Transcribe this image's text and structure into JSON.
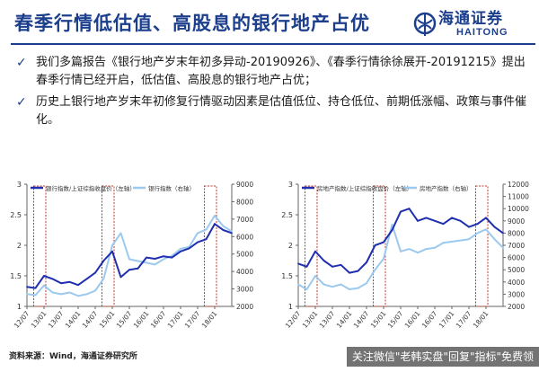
{
  "header": {
    "title": "春季行情低估值、高股息的银行地产占优",
    "logo_cn": "海通证券",
    "logo_en": "HAITONG"
  },
  "bullets": [
    "我们多篇报告《银行地产岁末年初多异动-20190926》、《春季行情徐徐展开-20191215》提出春季行情已经开启，低估值、高股息的银行地产占优；",
    "历史上银行地产岁末年初修复行情驱动因素是估值低位、持仓低位、前期低涨幅、政策与事件催化。"
  ],
  "colors": {
    "brand": "#1b3f8c",
    "series_dark": "#1f2fb0",
    "series_light": "#9cc9ee",
    "highlight_box": "#c0392b"
  },
  "chart_data": [
    {
      "type": "line",
      "x": [
        "12/07",
        "12/10",
        "13/01",
        "13/04",
        "13/07",
        "13/10",
        "14/01",
        "14/04",
        "14/07",
        "14/10",
        "15/01",
        "15/04",
        "15/07",
        "15/10",
        "16/01",
        "16/04",
        "16/07",
        "16/10",
        "17/01",
        "17/04",
        "17/07",
        "17/10",
        "18/01",
        "18/04",
        "18/07"
      ],
      "x_ticks": [
        "12/07",
        "13/01",
        "13/07",
        "14/01",
        "14/07",
        "15/01",
        "15/07",
        "16/01",
        "16/07",
        "17/01",
        "17/07",
        "18/01"
      ],
      "ylim_left": [
        1,
        3
      ],
      "ylim_right": [
        2000,
        9000
      ],
      "yticks_left": [
        "1",
        "1.5",
        "2",
        "2.5",
        "3"
      ],
      "yticks_right": [
        "2000",
        "3000",
        "4000",
        "5000",
        "6000",
        "7000",
        "8000",
        "9000"
      ],
      "series": [
        {
          "name": "银行指数/上证综指收盘价（左轴）",
          "axis": "left",
          "values": [
            1.32,
            1.3,
            1.5,
            1.45,
            1.38,
            1.4,
            1.35,
            1.45,
            1.55,
            1.75,
            1.9,
            1.48,
            1.6,
            1.62,
            1.8,
            1.78,
            1.82,
            1.8,
            1.9,
            1.95,
            2.05,
            2.1,
            2.35,
            2.25,
            2.2
          ]
        },
        {
          "name": "银行指数（右轴）",
          "axis": "right",
          "values": [
            2700,
            2650,
            3200,
            2800,
            2700,
            2800,
            2600,
            2700,
            2900,
            3600,
            5500,
            6200,
            4700,
            4600,
            4500,
            4400,
            4700,
            4900,
            5300,
            5400,
            6200,
            6400,
            7200,
            6600,
            6300
          ]
        }
      ],
      "highlight_boxes": [
        [
          "12/10",
          "13/01"
        ],
        [
          "14/10",
          "15/01"
        ],
        [
          "17/10",
          "18/01"
        ]
      ]
    },
    {
      "type": "line",
      "x": [
        "12/07",
        "12/10",
        "13/01",
        "13/04",
        "13/07",
        "13/10",
        "14/01",
        "14/04",
        "14/07",
        "14/10",
        "15/01",
        "15/04",
        "15/07",
        "15/10",
        "16/01",
        "16/04",
        "16/07",
        "16/10",
        "17/01",
        "17/04",
        "17/07",
        "17/10",
        "18/01",
        "18/04",
        "18/07"
      ],
      "x_ticks": [
        "12/07",
        "13/01",
        "13/07",
        "14/01",
        "14/07",
        "15/01",
        "15/07",
        "16/01",
        "16/07",
        "17/01",
        "17/07",
        "18/01"
      ],
      "ylim_left": [
        1,
        3
      ],
      "ylim_right": [
        2000,
        12000
      ],
      "yticks_left": [
        "1",
        "1.5",
        "2",
        "2.5",
        "3"
      ],
      "yticks_right": [
        "2000",
        "3000",
        "4000",
        "5000",
        "6000",
        "7000",
        "8000",
        "9000",
        "10000",
        "11000",
        "12000"
      ],
      "series": [
        {
          "name": "房地产指数/上证综指收盘价（左轴）",
          "axis": "left",
          "values": [
            1.7,
            1.65,
            1.9,
            1.75,
            1.65,
            1.68,
            1.55,
            1.58,
            1.72,
            2.0,
            2.05,
            2.25,
            2.55,
            2.6,
            2.4,
            2.45,
            2.4,
            2.35,
            2.45,
            2.4,
            2.3,
            2.35,
            2.45,
            2.3,
            2.2
          ]
        },
        {
          "name": "房地产指数（右轴）",
          "axis": "right",
          "values": [
            3800,
            3400,
            4500,
            3800,
            3600,
            3800,
            3400,
            3500,
            3900,
            5000,
            5900,
            8700,
            6500,
            6700,
            6400,
            6700,
            6800,
            7200,
            7300,
            7400,
            7500,
            8000,
            8300,
            7500,
            6800
          ]
        }
      ],
      "highlight_boxes": [
        [
          "12/10",
          "13/01"
        ],
        [
          "14/10",
          "15/01"
        ],
        [
          "17/10",
          "18/01"
        ]
      ]
    }
  ],
  "footer": {
    "source": "资料来源：Wind，海通证券研究所",
    "watermark": "关注微信\"老韩实盘\"回复\"指标\"免费领"
  }
}
